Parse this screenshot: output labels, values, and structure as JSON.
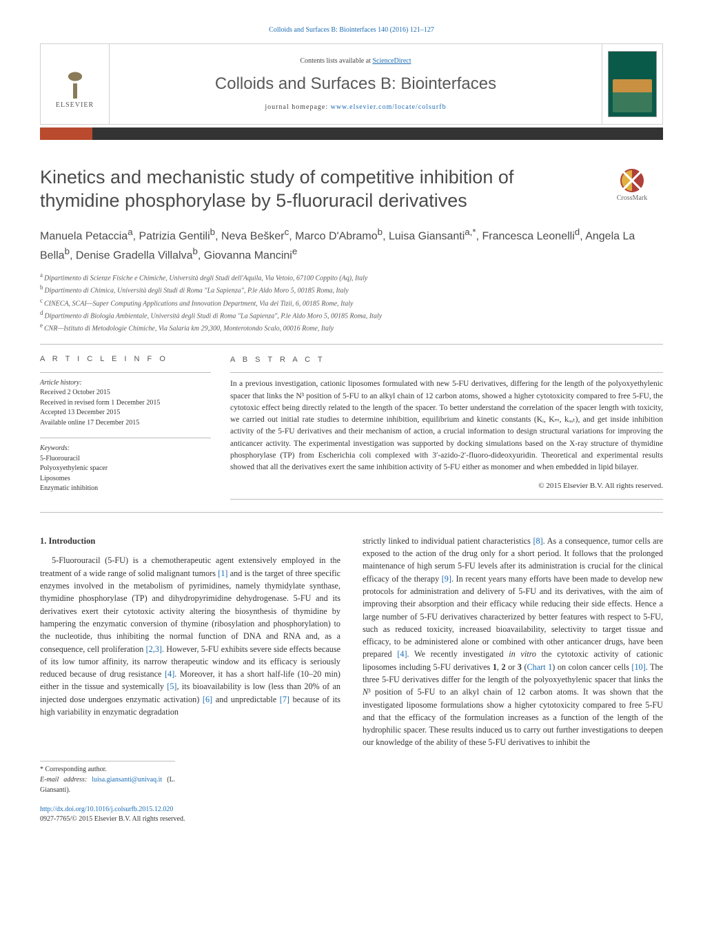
{
  "citation": "Colloids and Surfaces B: Biointerfaces 140 (2016) 121–127",
  "header": {
    "publisher_name": "ELSEVIER",
    "contents_prefix": "Contents lists available at ",
    "contents_link": "ScienceDirect",
    "journal_name": "Colloids and Surfaces B: Biointerfaces",
    "homepage_label": "journal homepage: ",
    "homepage_url": "www.elsevier.com/locate/colsurfb"
  },
  "brand_bar": {
    "accent_color": "#b94a2e",
    "bar_color": "#333333"
  },
  "crossmark_label": "CrossMark",
  "title": "Kinetics and mechanistic study of competitive inhibition of thymidine phosphorylase by 5-fluoruracil derivatives",
  "authors_html": "Manuela Petaccia<sup>a</sup>, Patrizia Gentili<sup>b</sup>, Neva Bešker<sup>c</sup>, Marco D'Abramo<sup>b</sup>, Luisa Giansanti<sup>a,*</sup>, Francesca Leonelli<sup>d</sup>, Angela La Bella<sup>b</sup>, Denise Gradella Villalva<sup>b</sup>, Giovanna Mancini<sup>e</sup>",
  "affiliations": [
    {
      "sup": "a",
      "text": "Dipartimento di Scienze Fisiche e Chimiche, Università degli Studi dell'Aquila, Via Vetoio, 67100 Coppito (Aq), Italy"
    },
    {
      "sup": "b",
      "text": "Dipartimento di Chimica, Università degli Studi di Roma \"La Sapienza\", P.le Aldo Moro 5, 00185 Roma, Italy"
    },
    {
      "sup": "c",
      "text": "CINECA, SCAI—Super Computing Applications and Innovation Department, Via dei Tizii, 6, 00185 Rome, Italy"
    },
    {
      "sup": "d",
      "text": "Dipartimento di Biologia Ambientale, Università degli Studi di Roma \"La Sapienza\", P.le Aldo Moro 5, 00185 Roma, Italy"
    },
    {
      "sup": "e",
      "text": "CNR—Istituto di Metodologie Chimiche, Via Salaria km 29,300, Monterotondo Scalo, 00016 Rome, Italy"
    }
  ],
  "article_info": {
    "heading": "A R T I C L E   I N F O",
    "history_label": "Article history:",
    "history": [
      "Received 2 October 2015",
      "Received in revised form 1 December 2015",
      "Accepted 13 December 2015",
      "Available online 17 December 2015"
    ],
    "keywords_label": "Keywords:",
    "keywords": [
      "5-Fluorouracil",
      "Polyoxyethylenic spacer",
      "Liposomes",
      "Enzymatic inhibition"
    ]
  },
  "abstract": {
    "heading": "A B S T R A C T",
    "text": "In a previous investigation, cationic liposomes formulated with new 5-FU derivatives, differing for the length of the polyoxyethylenic spacer that links the N³ position of 5-FU to an alkyl chain of 12 carbon atoms, showed a higher cytotoxicity compared to free 5-FU, the cytotoxic effect being directly related to the length of the spacer. To better understand the correlation of the spacer length with toxicity, we carried out initial rate studies to determine inhibition, equilibrium and kinetic constants (Kᵢ, Kₘ, kₒₐₜ), and get inside inhibition activity of the 5-FU derivatives and their mechanism of action, a crucial information to design structural variations for improving the anticancer activity. The experimental investigation was supported by docking simulations based on the X-ray structure of thymidine phosphorylase (TP) from Escherichia coli complexed with 3′-azido-2′-fluoro-dideoxyuridin. Theoretical and experimental results showed that all the derivatives exert the same inhibition activity of 5-FU either as monomer and when embedded in lipid bilayer.",
    "copyright": "© 2015 Elsevier B.V. All rights reserved."
  },
  "body": {
    "intro_heading": "1.  Introduction",
    "col1_html": "5-Fluorouracil (5-FU) is a chemotherapeutic agent extensively employed in the treatment of a wide range of solid malignant tumors <span class=\"ref-link\">[1]</span> and is the target of three specific enzymes involved in the metabolism of pyrimidines, namely thymidylate synthase, thymidine phosphorylase (TP) and dihydropyrimidine dehydrogenase. 5-FU and its derivatives exert their cytotoxic activity altering the biosynthesis of thymidine by hampering the enzymatic conversion of thymine (ribosylation and phosphorylation) to the nucleotide, thus inhibiting the normal function of DNA and RNA and, as a consequence, cell proliferation <span class=\"ref-link\">[2,3]</span>. However, 5-FU exhibits severe side effects because of its low tumor affinity, its narrow therapeutic window and its efficacy is seriously reduced because of drug resistance <span class=\"ref-link\">[4]</span>. Moreover, it has a short half-life (10–20 min) either in the tissue and systemically <span class=\"ref-link\">[5]</span>, its bioavailability is low (less than 20% of an injected dose undergoes enzymatic activation) <span class=\"ref-link\">[6]</span> and unpredictable <span class=\"ref-link\">[7]</span> because of its high variability in enzymatic degradation",
    "col2_html": "strictly linked to individual patient characteristics <span class=\"ref-link\">[8]</span>. As a consequence, tumor cells are exposed to the action of the drug only for a short period. It follows that the prolonged maintenance of high serum 5-FU levels after its administration is crucial for the clinical efficacy of the therapy <span class=\"ref-link\">[9]</span>. In recent years many efforts have been made to develop new protocols for administration and delivery of 5-FU and its derivatives, with the aim of improving their absorption and their efficacy while reducing their side effects. Hence a large number of 5-FU derivatives characterized by better features with respect to 5-FU, such as reduced toxicity, increased bioavailability, selectivity to target tissue and efficacy, to be administered alone or combined with other anticancer drugs, have been prepared <span class=\"ref-link\">[4]</span>. We recently investigated <span class=\"ital\">in vitro</span> the cytotoxic activity of cationic liposomes including 5-FU derivatives <b>1</b>, <b>2</b> or <b>3</b> (<span class=\"ref-link\">Chart 1</span>) on colon cancer cells <span class=\"ref-link\">[10]</span>. The three 5-FU derivatives differ for the length of the polyoxyethylenic spacer that links the <span class=\"ital\">N</span>³ position of 5-FU to an alkyl chain of 12 carbon atoms. It was shown that the investigated liposome formulations show a higher cytotoxicity compared to free 5-FU and that the efficacy of the formulation increases as a function of the length of the hydrophilic spacer. These results induced us to carry out further investigations to deepen our knowledge of the ability of these 5-FU derivatives to inhibit the"
  },
  "footnotes": {
    "corr_label": "* Corresponding author.",
    "email_label": "E-mail address: ",
    "email": "luisa.giansanti@univaq.it",
    "email_person": " (L. Giansanti)."
  },
  "doi": {
    "url": "http://dx.doi.org/10.1016/j.colsurfb.2015.12.020",
    "line2": "0927-7765/© 2015 Elsevier B.V. All rights reserved."
  },
  "colors": {
    "link": "#1a6bb3",
    "text": "#333333",
    "title": "#4a4a4a",
    "border": "#bcbcbc"
  }
}
